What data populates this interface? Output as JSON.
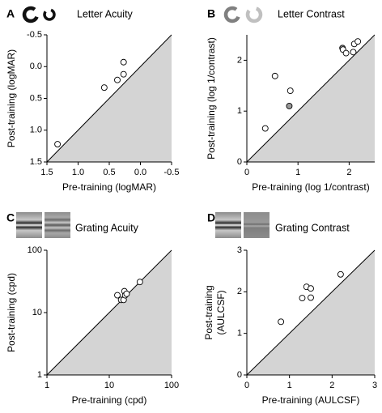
{
  "chart_data": [
    {
      "type": "scatter",
      "panel": "A",
      "title": "Letter Acuity",
      "xlabel": "Pre-training (logMAR)",
      "ylabel": "Post-training (logMAR)",
      "x": [
        1.33,
        0.58,
        0.37,
        0.27,
        0.27
      ],
      "values": [
        1.22,
        0.33,
        0.21,
        0.12,
        -0.07
      ],
      "marker_color": "#ffffff",
      "xlim": [
        1.5,
        -0.5
      ],
      "ylim": [
        1.5,
        -0.5
      ],
      "xticks": [
        1.5,
        {
          "value": 1,
          "label": "1.0"
        },
        0.5,
        {
          "value": 0,
          "label": "0.0"
        },
        -0.5
      ],
      "yticks": [
        1.5,
        {
          "value": 1,
          "label": "1.0"
        },
        0.5,
        {
          "value": 0,
          "label": "0.0"
        },
        -0.5
      ],
      "identity_line": true,
      "shade_color": "#d4d4d4"
    },
    {
      "type": "scatter",
      "panel": "B",
      "title": "Letter Contrast",
      "xlabel": "Pre-training (log 1/contrast)",
      "ylabel": "Post-training (log 1/contrast)",
      "x": [
        0.36,
        0.55,
        0.85,
        0.83,
        1.87,
        1.88,
        1.94,
        2.08,
        2.1,
        2.17
      ],
      "values": [
        0.66,
        1.69,
        1.4,
        1.1,
        2.24,
        2.21,
        2.14,
        2.16,
        2.32,
        2.37
      ],
      "marker_colors": [
        "#ffffff",
        "#ffffff",
        "#ffffff",
        "#9a9a9a",
        "#9a9a9a",
        "#ffffff",
        "#ffffff",
        "#ffffff",
        "#ffffff",
        "#ffffff"
      ],
      "xlim": [
        0,
        2.5
      ],
      "ylim": [
        0,
        2.5
      ],
      "xticks": [
        0,
        1,
        2
      ],
      "yticks": [
        0,
        1,
        2
      ],
      "identity_line": true,
      "shade_color": "#d4d4d4"
    },
    {
      "type": "scatter",
      "panel": "C",
      "title": "Grating Acuity",
      "xlabel": "Pre-training (cpd)",
      "ylabel": "Post-training (cpd)",
      "x": [
        13.5,
        15.5,
        17,
        17.5,
        18,
        19,
        31
      ],
      "values": [
        19,
        16,
        16,
        22,
        19,
        20,
        31
      ],
      "marker_color": "#ffffff",
      "xscale": "log",
      "yscale": "log",
      "xlim": [
        1,
        100
      ],
      "ylim": [
        1,
        100
      ],
      "xticks": [
        1,
        10,
        100
      ],
      "yticks": [
        1,
        10,
        100
      ],
      "identity_line": true,
      "shade_color": "#d4d4d4"
    },
    {
      "type": "scatter",
      "panel": "D",
      "title": "Grating Contrast",
      "xlabel": "Pre-training (AULCSF)",
      "ylabel": [
        "Post-training",
        "(AULCSF)"
      ],
      "x": [
        0.8,
        1.3,
        1.4,
        1.5,
        1.5,
        2.2
      ],
      "values": [
        1.28,
        1.85,
        2.12,
        2.08,
        1.86,
        2.42
      ],
      "marker_color": "#ffffff",
      "xlim": [
        0,
        3
      ],
      "ylim": [
        0,
        3
      ],
      "xticks": [
        0,
        1,
        2,
        3
      ],
      "yticks": [
        0,
        1,
        2,
        3
      ],
      "identity_line": true,
      "shade_color": "#d4d4d4"
    }
  ]
}
